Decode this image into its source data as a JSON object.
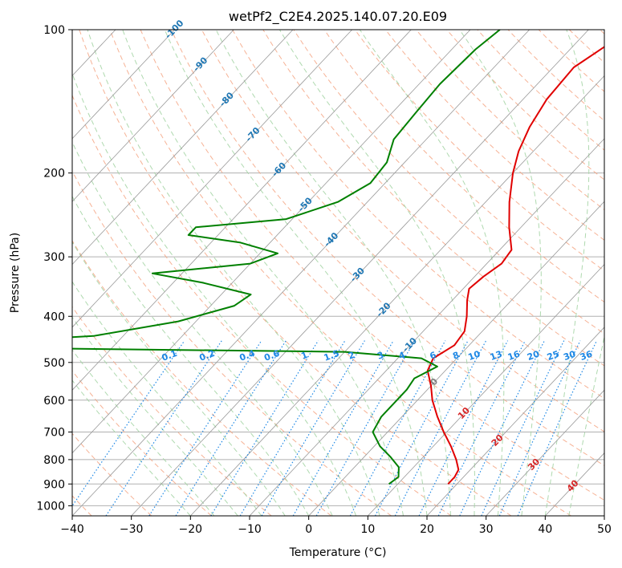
{
  "chart_data": {
    "type": "line",
    "title": "wetPf2_C2E4.2025.140.07.20.E09",
    "xlabel": "Temperature (°C)",
    "ylabel": "Pressure (hPa)",
    "xlim": [
      -40,
      50
    ],
    "ylim": [
      1050,
      100
    ],
    "y_scale": "log",
    "grid": true,
    "x_ticks": [
      "−40",
      "−30",
      "−20",
      "−10",
      "0",
      "10",
      "20",
      "30",
      "40",
      "50"
    ],
    "y_ticks": [
      "100",
      "200",
      "300",
      "400",
      "500",
      "600",
      "700",
      "800",
      "900",
      "1000"
    ],
    "y_tick_values": [
      100,
      200,
      300,
      400,
      500,
      600,
      700,
      800,
      900,
      1000
    ],
    "colors": {
      "temperature": "#e00000",
      "dewpoint": "#008000",
      "isotherm": "#999999",
      "dry_adiabat": "#f4a582",
      "moist_adiabat": "#a6d5a6",
      "mixing_ratio": "#1e88e5"
    },
    "series": [
      {
        "role": "temperature",
        "points": [
          {
            "p": 100,
            "t": -23.0
          },
          {
            "p": 120,
            "t": -26.5
          },
          {
            "p": 140,
            "t": -26.0
          },
          {
            "p": 160,
            "t": -24.5
          },
          {
            "p": 180,
            "t": -22.5
          },
          {
            "p": 200,
            "t": -20.0
          },
          {
            "p": 230,
            "t": -16.0
          },
          {
            "p": 260,
            "t": -12.0
          },
          {
            "p": 290,
            "t": -8.0
          },
          {
            "p": 310,
            "t": -7.5
          },
          {
            "p": 330,
            "t": -8.5
          },
          {
            "p": 350,
            "t": -9.0
          },
          {
            "p": 370,
            "t": -7.5
          },
          {
            "p": 400,
            "t": -5.0
          },
          {
            "p": 430,
            "t": -3.0
          },
          {
            "p": 460,
            "t": -2.5
          },
          {
            "p": 490,
            "t": -4.0
          },
          {
            "p": 520,
            "t": -3.0
          },
          {
            "p": 560,
            "t": 0.0
          },
          {
            "p": 600,
            "t": 2.5
          },
          {
            "p": 650,
            "t": 6.0
          },
          {
            "p": 700,
            "t": 9.5
          },
          {
            "p": 750,
            "t": 13.0
          },
          {
            "p": 800,
            "t": 16.0
          },
          {
            "p": 840,
            "t": 18.0
          },
          {
            "p": 870,
            "t": 18.5
          },
          {
            "p": 900,
            "t": 18.5
          }
        ]
      },
      {
        "role": "dewpoint",
        "points": [
          {
            "p": 100,
            "t": -45.0
          },
          {
            "p": 110,
            "t": -46.0
          },
          {
            "p": 130,
            "t": -46.5
          },
          {
            "p": 150,
            "t": -46.0
          },
          {
            "p": 170,
            "t": -45.5
          },
          {
            "p": 190,
            "t": -43.0
          },
          {
            "p": 210,
            "t": -42.5
          },
          {
            "p": 230,
            "t": -45.0
          },
          {
            "p": 250,
            "t": -51.0
          },
          {
            "p": 260,
            "t": -65.0
          },
          {
            "p": 270,
            "t": -65.0
          },
          {
            "p": 280,
            "t": -55.0
          },
          {
            "p": 295,
            "t": -47.0
          },
          {
            "p": 310,
            "t": -50.0
          },
          {
            "p": 325,
            "t": -65.0
          },
          {
            "p": 340,
            "t": -55.0
          },
          {
            "p": 360,
            "t": -45.0
          },
          {
            "p": 380,
            "t": -46.0
          },
          {
            "p": 410,
            "t": -53.0
          },
          {
            "p": 440,
            "t": -65.0
          },
          {
            "p": 455,
            "t": -85.0
          },
          {
            "p": 465,
            "t": -85.0
          },
          {
            "p": 475,
            "t": -20.0
          },
          {
            "p": 490,
            "t": -6.0
          },
          {
            "p": 510,
            "t": -2.0
          },
          {
            "p": 540,
            "t": -4.0
          },
          {
            "p": 570,
            "t": -3.5
          },
          {
            "p": 600,
            "t": -3.5
          },
          {
            "p": 650,
            "t": -3.5
          },
          {
            "p": 700,
            "t": -2.5
          },
          {
            "p": 750,
            "t": 1.0
          },
          {
            "p": 790,
            "t": 4.5
          },
          {
            "p": 830,
            "t": 7.5
          },
          {
            "p": 870,
            "t": 9.0
          },
          {
            "p": 900,
            "t": 8.5
          }
        ]
      }
    ],
    "isotherm_labels": [
      "-100",
      "-90",
      "-80",
      "-70",
      "-60",
      "-50",
      "-40",
      "-30",
      "-20",
      "-10",
      "0",
      "10",
      "20",
      "30",
      "40"
    ],
    "isotherm_label_values": [
      -100,
      -90,
      -80,
      -70,
      -60,
      -50,
      -40,
      -30,
      -20,
      -10,
      0,
      10,
      20,
      30,
      40
    ],
    "mixing_ratio_labels": [
      "0.1",
      "0.2",
      "0.4",
      "0.6",
      "1",
      "1.5",
      "2",
      "3",
      "4",
      "6",
      "8",
      "10",
      "13",
      "16",
      "20",
      "25",
      "30",
      "36"
    ],
    "mixing_ratio_label_values": [
      0.1,
      0.2,
      0.4,
      0.6,
      1,
      1.5,
      2,
      3,
      4,
      6,
      8,
      10,
      13,
      16,
      20,
      25,
      30,
      36
    ]
  }
}
